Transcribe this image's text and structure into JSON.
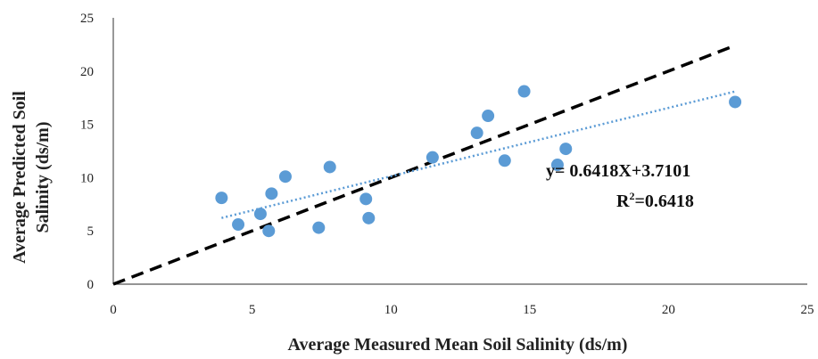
{
  "chart_data": {
    "type": "scatter",
    "title": "",
    "xlabel": "Average Measured Mean Soil Salinity (ds/m)",
    "ylabel_lines": [
      "Average Predicted Soil",
      "Salinity (ds/m)"
    ],
    "xlim": [
      0,
      25
    ],
    "ylim": [
      0,
      25
    ],
    "x_ticks": [
      "0",
      "5",
      "10",
      "15",
      "20",
      "25"
    ],
    "y_ticks": [
      "0",
      "5",
      "10",
      "15",
      "20",
      "25"
    ],
    "grid": false,
    "legend": "none",
    "series": [
      {
        "points": [
          [
            3.9,
            8.1
          ],
          [
            4.5,
            5.6
          ],
          [
            5.3,
            6.6
          ],
          [
            5.6,
            5.0
          ],
          [
            5.7,
            8.5
          ],
          [
            6.2,
            10.1
          ],
          [
            7.4,
            5.3
          ],
          [
            7.8,
            11.0
          ],
          [
            9.1,
            8.0
          ],
          [
            9.2,
            6.2
          ],
          [
            11.5,
            11.9
          ],
          [
            13.1,
            14.2
          ],
          [
            13.5,
            15.8
          ],
          [
            14.1,
            11.6
          ],
          [
            14.8,
            18.1
          ],
          [
            16.0,
            11.2
          ],
          [
            16.3,
            12.7
          ],
          [
            22.4,
            17.1
          ]
        ],
        "color": "#5b9bd5"
      }
    ],
    "trendline": {
      "slope": 0.6418,
      "intercept": 3.7101,
      "x_range": [
        3.9,
        22.4
      ],
      "color": "#5b9bd5",
      "style": "dotted"
    },
    "reference_line": {
      "slope": 1,
      "intercept": 0,
      "x_range": [
        0,
        22.4
      ],
      "color": "#000000",
      "style": "dashed"
    },
    "annotations": {
      "equation": "y= 0.6418X+3.7101",
      "r2_prefix": "R",
      "r2_sup": "2",
      "r2_suffix": "=0.6418"
    }
  }
}
